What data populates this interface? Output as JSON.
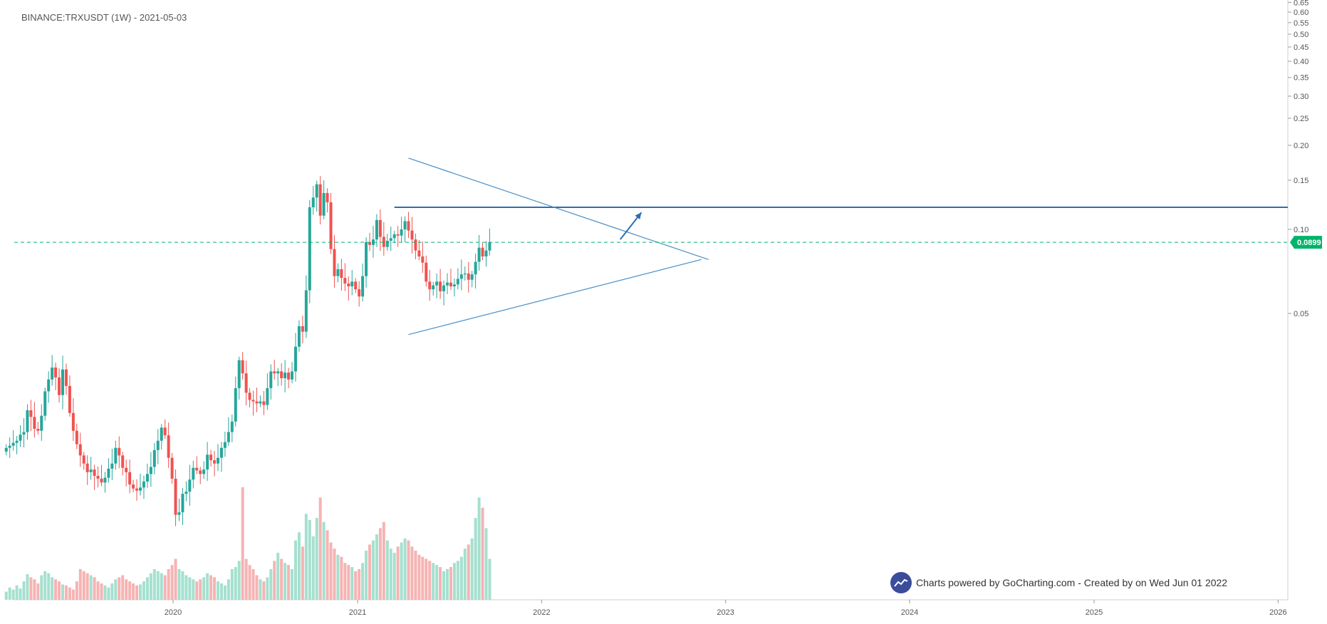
{
  "header": {
    "symbol_label": "BINANCE:TRXUSDT (1W) - 2021-05-03"
  },
  "watermark": {
    "text": "Charts powered by GoCharting.com - Created by  on Wed Jun 01 2022",
    "icon": "trend-chart-icon"
  },
  "colors": {
    "up": "#26a69a",
    "down": "#ef5350",
    "volume_up": "#a5e0cf",
    "volume_down": "#f6b3b3",
    "trend": "#4a8fc7",
    "resistance": "#2a6fb0",
    "last_price": "#00b46a"
  },
  "chart_data": {
    "type": "candlestick",
    "scale": "log",
    "interval": "1W",
    "x_ticks": [
      "2020",
      "2021",
      "2022",
      "2023",
      "2024",
      "2025",
      "2026"
    ],
    "y_ticks": [
      "0.05",
      "0.10",
      "0.15",
      "0.20",
      "0.25",
      "0.30",
      "0.35",
      "0.40",
      "0.45",
      "0.50",
      "0.55",
      "0.60",
      "0.65"
    ],
    "last_price": {
      "value": 0.0899,
      "label": "0.0899"
    },
    "resistance": 0.12,
    "triangle": {
      "upper": [
        [
          "2021-04-12",
          0.18
        ],
        [
          "2022-11-28",
          0.078
        ]
      ],
      "lower": [
        [
          "2021-04-12",
          0.042
        ],
        [
          "2022-11-14",
          0.078
        ]
      ]
    },
    "arrow": [
      [
        "2022-06-06",
        0.092
      ],
      [
        "2022-07-18",
        0.115
      ]
    ],
    "closes": [
      0.0165,
      0.0168,
      0.0172,
      0.0175,
      0.0184,
      0.0188,
      0.0225,
      0.0213,
      0.0193,
      0.019,
      0.0215,
      0.0263,
      0.029,
      0.032,
      0.0295,
      0.0255,
      0.0315,
      0.0275,
      0.022,
      0.019,
      0.017,
      0.0155,
      0.0145,
      0.0135,
      0.0138,
      0.0131,
      0.0128,
      0.0124,
      0.0129,
      0.0139,
      0.0145,
      0.0165,
      0.0155,
      0.014,
      0.0135,
      0.0122,
      0.0118,
      0.0116,
      0.0119,
      0.0125,
      0.0133,
      0.0141,
      0.0162,
      0.0175,
      0.0195,
      0.0183,
      0.0152,
      0.0128,
      0.0095,
      0.0097,
      0.0113,
      0.0115,
      0.0127,
      0.014,
      0.0137,
      0.0133,
      0.0138,
      0.0156,
      0.0149,
      0.0145,
      0.0152,
      0.0165,
      0.0173,
      0.0188,
      0.0205,
      0.027,
      0.034,
      0.0305,
      0.026,
      0.0245,
      0.0242,
      0.0238,
      0.0242,
      0.0235,
      0.027,
      0.031,
      0.0305,
      0.031,
      0.0293,
      0.0307,
      0.029,
      0.031,
      0.038,
      0.045,
      0.043,
      0.0605,
      0.12,
      0.13,
      0.145,
      0.112,
      0.135,
      0.125,
      0.085,
      0.068,
      0.072,
      0.067,
      0.064,
      0.0625,
      0.065,
      0.061,
      0.0575,
      0.068,
      0.09,
      0.088,
      0.092,
      0.108,
      0.094,
      0.0865,
      0.091,
      0.093,
      0.096,
      0.095,
      0.1,
      0.107,
      0.099,
      0.092,
      0.084,
      0.08,
      0.076,
      0.065,
      0.061,
      0.063,
      0.065,
      0.06,
      0.063,
      0.0645,
      0.0625,
      0.0635,
      0.0665,
      0.069,
      0.0695,
      0.066,
      0.069,
      0.0765,
      0.086,
      0.08,
      0.084,
      0.0899
    ],
    "volume_values": [
      8,
      12,
      10,
      14,
      11,
      18,
      25,
      22,
      20,
      16,
      24,
      28,
      26,
      22,
      20,
      18,
      15,
      14,
      12,
      10,
      18,
      30,
      28,
      26,
      24,
      22,
      18,
      16,
      14,
      12,
      16,
      20,
      22,
      24,
      20,
      18,
      16,
      14,
      15,
      18,
      22,
      26,
      30,
      28,
      26,
      24,
      30,
      34,
      40,
      30,
      28,
      24,
      22,
      20,
      18,
      20,
      22,
      26,
      24,
      22,
      18,
      16,
      14,
      20,
      30,
      32,
      38,
      110,
      40,
      34,
      30,
      24,
      20,
      18,
      22,
      30,
      38,
      46,
      40,
      36,
      34,
      30,
      58,
      66,
      52,
      84,
      78,
      62,
      80,
      100,
      76,
      68,
      56,
      50,
      44,
      42,
      36,
      34,
      32,
      28,
      30,
      36,
      48,
      54,
      58,
      64,
      70,
      76,
      58,
      50,
      46,
      52,
      56,
      60,
      58,
      52,
      48,
      44,
      42,
      40,
      38,
      36,
      34,
      32,
      28,
      30,
      32,
      36,
      38,
      42,
      50,
      54,
      60,
      80,
      100,
      90,
      70,
      40
    ]
  }
}
